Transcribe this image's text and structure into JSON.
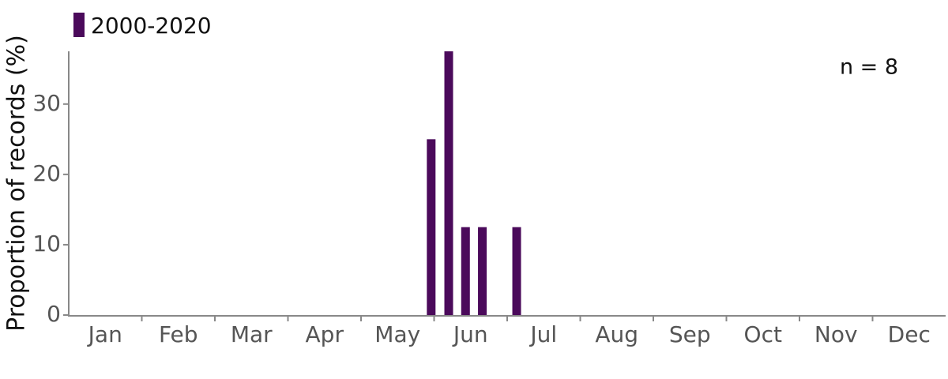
{
  "chart_data": {
    "type": "bar",
    "y_label": "Proportion of records (%)",
    "annotation": "n = 8",
    "categories": [
      "Jan",
      "Feb",
      "Mar",
      "Apr",
      "May",
      "Jun",
      "Jul",
      "Aug",
      "Sep",
      "Oct",
      "Nov",
      "Dec"
    ],
    "xlim": [
      0,
      12
    ],
    "series": [
      {
        "name": "2000-2020",
        "color": "#4b0a5b",
        "x": [
          4.96,
          5.2,
          5.43,
          5.66,
          6.13
        ],
        "values": [
          25,
          37.5,
          12.5,
          12.5,
          12.5
        ]
      }
    ],
    "ylim": [
      0,
      37.5
    ],
    "yticks": [
      0,
      10,
      20,
      30
    ]
  }
}
